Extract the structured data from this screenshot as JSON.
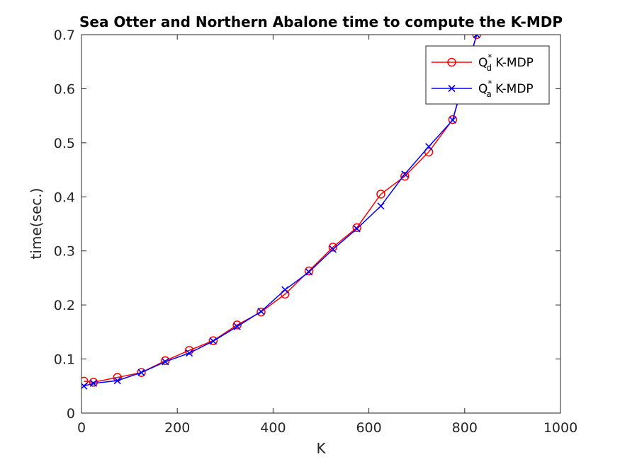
{
  "chart_data": {
    "type": "line",
    "title": "Sea Otter and Northern Abalone time to compute the K-MDP",
    "xlabel": "K",
    "ylabel": "time(sec.)",
    "xlim": [
      0,
      1000
    ],
    "ylim": [
      0,
      0.7
    ],
    "xticks": [
      0,
      200,
      400,
      600,
      800,
      1000
    ],
    "yticks": [
      0,
      0.1,
      0.2,
      0.3,
      0.4,
      0.5,
      0.6,
      0.7
    ],
    "xtick_labels": [
      "0",
      "200",
      "400",
      "600",
      "800",
      "1000"
    ],
    "ytick_labels": [
      "0",
      "0.1",
      "0.2",
      "0.3",
      "0.4",
      "0.5",
      "0.6",
      "0.7"
    ],
    "grid": false,
    "legend_position": "top-right",
    "series": [
      {
        "name_base": "Q",
        "name_sup": "*",
        "name_sub": "d",
        "name_suffix": " K-MDP",
        "color": "#ff0000",
        "marker": "circle",
        "x": [
          5,
          25,
          75,
          125,
          175,
          225,
          275,
          325,
          375,
          425,
          475,
          525,
          575,
          625,
          675,
          725,
          775,
          825
        ],
        "y": [
          0.059,
          0.057,
          0.066,
          0.075,
          0.097,
          0.116,
          0.134,
          0.163,
          0.187,
          0.22,
          0.263,
          0.307,
          0.343,
          0.405,
          0.438,
          0.483,
          0.543,
          0.7
        ]
      },
      {
        "name_base": "Q",
        "name_sup": "*",
        "name_sub": "a",
        "name_suffix": " K-MDP",
        "color": "#0000ff",
        "marker": "x",
        "x": [
          5,
          25,
          75,
          125,
          175,
          225,
          275,
          325,
          375,
          425,
          475,
          525,
          575,
          625,
          675,
          725,
          775,
          825
        ],
        "y": [
          0.05,
          0.055,
          0.06,
          0.075,
          0.095,
          0.111,
          0.133,
          0.16,
          0.188,
          0.228,
          0.261,
          0.303,
          0.341,
          0.383,
          0.442,
          0.493,
          0.542,
          0.7
        ]
      }
    ]
  }
}
